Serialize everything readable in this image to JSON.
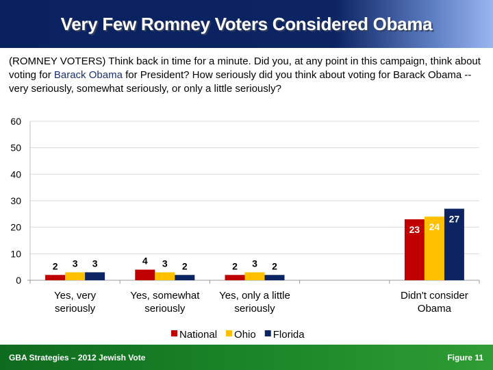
{
  "header": {
    "title": "Very Few Romney Voters Considered Obama"
  },
  "question": {
    "before": "(ROMNEY VOTERS) Think back in time for a minute. Did you, at any point in this campaign, think about voting for ",
    "highlight": "Barack Obama",
    "after": " for President?  How seriously did you think about voting for Barack Obama -- very seriously, somewhat seriously, or only a little seriously?"
  },
  "footer": {
    "left": "GBA Strategies – 2012 Jewish Vote",
    "right": "Figure  11"
  },
  "chart_data": {
    "type": "bar",
    "title": "",
    "xlabel": "",
    "ylabel": "",
    "categories": [
      [
        "Yes, very",
        "seriously"
      ],
      [
        "Yes, somewhat",
        "seriously"
      ],
      [
        "Yes, only a little",
        "seriously"
      ],
      [
        "",
        ""
      ],
      [
        "Didn't consider",
        "Obama"
      ]
    ],
    "series": [
      {
        "name": "National",
        "color": "#c00000",
        "values": [
          2,
          4,
          2,
          null,
          23
        ]
      },
      {
        "name": "Ohio",
        "color": "#ffc000",
        "values": [
          3,
          3,
          3,
          null,
          24
        ]
      },
      {
        "name": "Florida",
        "color": "#0c2462",
        "values": [
          3,
          2,
          2,
          null,
          27
        ]
      }
    ],
    "ylim": [
      0,
      60
    ],
    "yticks": [
      0,
      10,
      20,
      30,
      40,
      50,
      60
    ],
    "grid": true,
    "legend": "bottom"
  }
}
